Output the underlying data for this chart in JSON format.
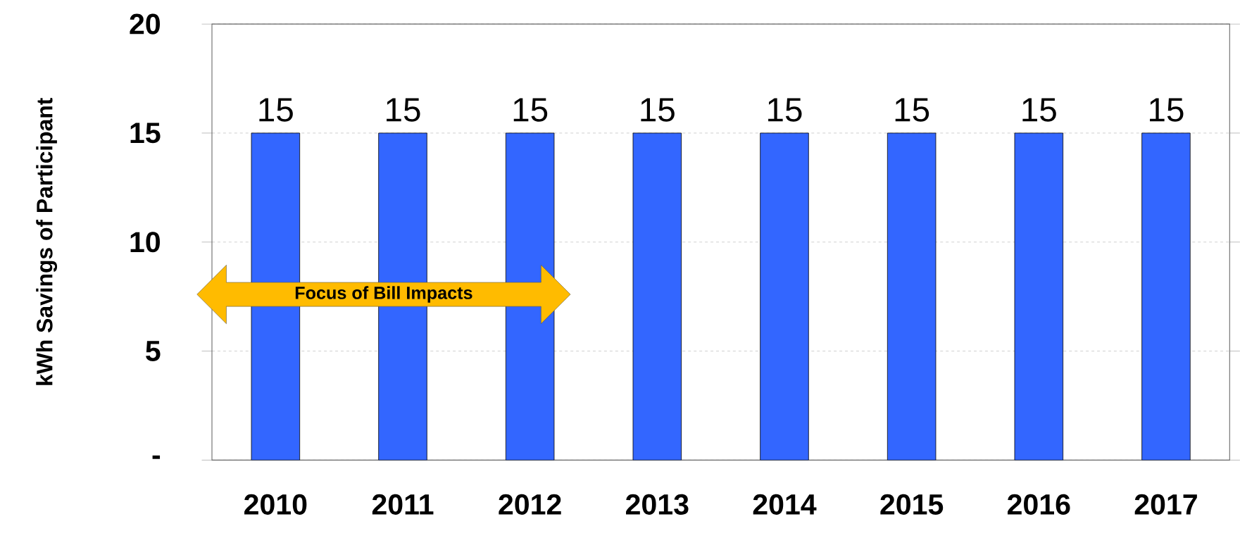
{
  "chart_data": {
    "type": "bar",
    "ylabel": "kWh Savings of Participant",
    "categories": [
      "2010",
      "2011",
      "2012",
      "2013",
      "2014",
      "2015",
      "2016",
      "2017"
    ],
    "values": [
      15,
      15,
      15,
      15,
      15,
      15,
      15,
      15
    ],
    "color": "#3366ff",
    "data_labels": true,
    "grid": "y",
    "ylim": [
      0,
      20
    ],
    "yticks": [
      {
        "value": 0,
        "label": "-"
      },
      5,
      10,
      15,
      20
    ],
    "annotations": [
      "Focus of Bill Impacts"
    ]
  }
}
